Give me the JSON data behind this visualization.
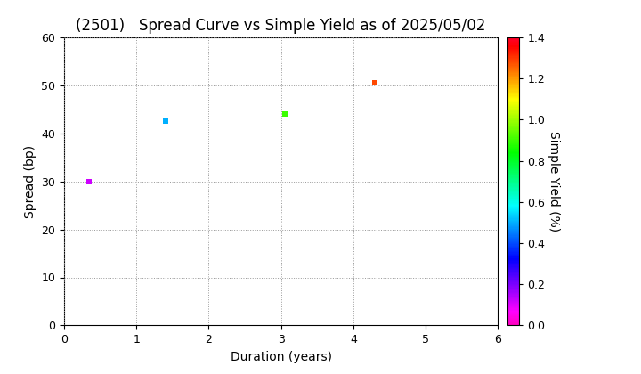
{
  "title": "(2501)   Spread Curve vs Simple Yield as of 2025/05/02",
  "xlabel": "Duration (years)",
  "ylabel": "Spread (bp)",
  "colorbar_label": "Simple Yield (%)",
  "xlim": [
    0,
    6
  ],
  "ylim": [
    0,
    60
  ],
  "xticks": [
    0,
    1,
    2,
    3,
    4,
    5,
    6
  ],
  "yticks": [
    0,
    10,
    20,
    30,
    40,
    50,
    60
  ],
  "colorbar_min": 0.0,
  "colorbar_max": 1.4,
  "colorbar_ticks": [
    0.0,
    0.2,
    0.4,
    0.6,
    0.8,
    1.0,
    1.2,
    1.4
  ],
  "points": [
    {
      "duration": 0.35,
      "spread": 30,
      "simple_yield": 0.12
    },
    {
      "duration": 1.4,
      "spread": 42.5,
      "simple_yield": 0.5
    },
    {
      "duration": 3.05,
      "spread": 44,
      "simple_yield": 0.9
    },
    {
      "duration": 4.3,
      "spread": 50.5,
      "simple_yield": 1.28
    }
  ],
  "marker_size": 18,
  "marker": "s",
  "bg_color": "#ffffff",
  "grid_color": "#999999",
  "grid_style": "dotted",
  "title_fontsize": 12,
  "label_fontsize": 10,
  "tick_fontsize": 9,
  "cbar_tick_fontsize": 9,
  "colormap": "gist_rainbow_r"
}
